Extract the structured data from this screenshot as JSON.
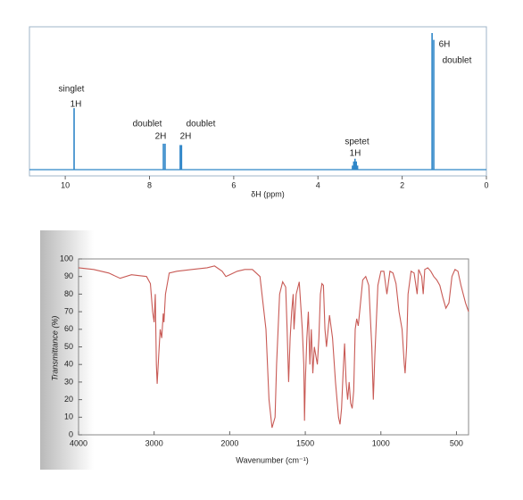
{
  "chart_data": [
    {
      "type": "stem",
      "x": [
        9.79,
        7.67,
        7.63,
        7.27,
        7.24,
        3.18,
        3.15,
        3.12,
        3.09,
        3.06,
        1.29,
        1.25
      ],
      "values": [
        45,
        19,
        19,
        18,
        18,
        3,
        6,
        8,
        6,
        3,
        100,
        95
      ],
      "color": "#2f86c8",
      "xlim": [
        10.85,
        0
      ],
      "xticks": [
        10,
        8,
        6,
        4,
        2,
        0
      ],
      "xlabel": "δH (ppm)",
      "annotations": [
        "singlet",
        "1H",
        "doublet",
        "2H",
        "doublet",
        "2H",
        "spetet",
        "1H",
        "6H",
        "doublet"
      ]
    },
    {
      "type": "line",
      "x": [
        4000,
        3800,
        3600,
        3450,
        3300,
        3100,
        3050,
        3020,
        3000,
        2985,
        2970,
        2960,
        2940,
        2920,
        2900,
        2880,
        2870,
        2850,
        2800,
        2700,
        2500,
        2300,
        2200,
        2100,
        2050,
        2000,
        1950,
        1900,
        1850,
        1800,
        1760,
        1740,
        1720,
        1700,
        1690,
        1670,
        1650,
        1630,
        1620,
        1610,
        1600,
        1590,
        1580,
        1575,
        1560,
        1540,
        1520,
        1510,
        1505,
        1500,
        1490,
        1480,
        1470,
        1460,
        1450,
        1440,
        1420,
        1410,
        1400,
        1390,
        1380,
        1370,
        1360,
        1340,
        1320,
        1300,
        1280,
        1270,
        1260,
        1250,
        1240,
        1230,
        1220,
        1210,
        1200,
        1190,
        1180,
        1170,
        1160,
        1150,
        1140,
        1120,
        1100,
        1080,
        1060,
        1050,
        1040,
        1020,
        1000,
        980,
        960,
        940,
        920,
        900,
        880,
        860,
        845,
        840,
        830,
        820,
        800,
        780,
        760,
        750,
        730,
        720,
        710,
        690,
        670,
        650,
        630,
        610,
        590,
        570,
        550,
        530,
        510,
        490,
        470,
        440,
        420
      ],
      "values": [
        95,
        94,
        92,
        89,
        91,
        90,
        86,
        70,
        64,
        80,
        40,
        29,
        45,
        60,
        55,
        69,
        64,
        80,
        92,
        93,
        94,
        95,
        96,
        93,
        90,
        91,
        93,
        94,
        94,
        90,
        60,
        20,
        4,
        10,
        40,
        80,
        87,
        84,
        60,
        30,
        55,
        70,
        80,
        60,
        80,
        87,
        60,
        40,
        8,
        30,
        55,
        70,
        40,
        60,
        35,
        50,
        40,
        55,
        80,
        86,
        85,
        60,
        50,
        68,
        55,
        30,
        10,
        6,
        15,
        35,
        52,
        30,
        20,
        30,
        18,
        15,
        25,
        60,
        66,
        62,
        70,
        88,
        90,
        85,
        50,
        20,
        45,
        85,
        93,
        93,
        80,
        93,
        92,
        86,
        70,
        60,
        40,
        35,
        50,
        80,
        93,
        92,
        80,
        94,
        90,
        80,
        94,
        95,
        93,
        90,
        88,
        85,
        78,
        72,
        75,
        90,
        94,
        93,
        85,
        75,
        70
      ],
      "color": "#c85a55",
      "xlim": [
        4000,
        420
      ],
      "xticks": [
        4000,
        3000,
        2000,
        1500,
        1000,
        500
      ],
      "xscale_break": 2000,
      "xscale_factor": 2,
      "ylim": [
        0,
        100
      ],
      "yticks": [
        0,
        10,
        20,
        30,
        40,
        50,
        60,
        70,
        80,
        90,
        100
      ],
      "xlabel": "Wavenumber (cm⁻¹)",
      "ylabel": "Transmittance (%)"
    }
  ]
}
